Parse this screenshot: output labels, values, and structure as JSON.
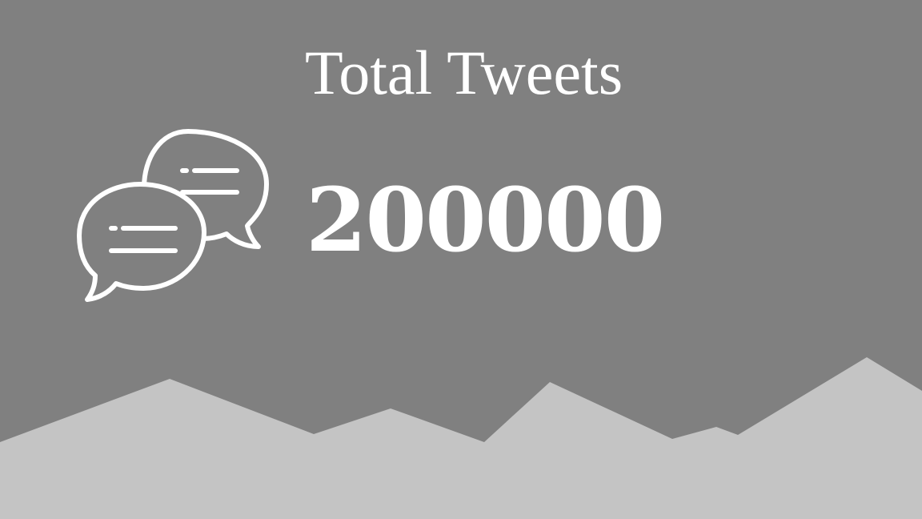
{
  "stat": {
    "title": "Total Tweets",
    "value": "200000",
    "icon": "speech-bubbles-icon"
  },
  "colors": {
    "background": "#808080",
    "text": "#ffffff",
    "ground": "#c4c4c4"
  }
}
